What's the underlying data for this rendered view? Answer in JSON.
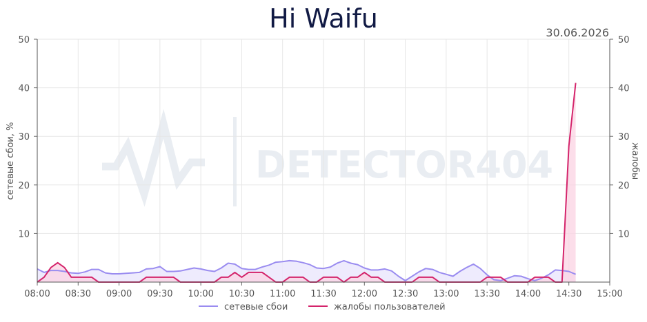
{
  "chart_data": {
    "type": "area",
    "title": "Hi Waifu",
    "date": "30.06.2026",
    "watermark": "DETECTOR404",
    "ylabel_left": "сетевые сбои, %",
    "ylabel_right": "жалобы",
    "x_ticks": [
      "08:00",
      "08:30",
      "09:00",
      "09:30",
      "10:00",
      "10:30",
      "11:00",
      "11:30",
      "12:00",
      "12:30",
      "13:00",
      "13:30",
      "14:00",
      "14:30",
      "15:00"
    ],
    "y_ticks_left": [
      "10",
      "20",
      "30",
      "40",
      "50"
    ],
    "y_ticks_right": [
      "10",
      "20",
      "30",
      "40",
      "50"
    ],
    "ylim_left": [
      0,
      50
    ],
    "ylim_right": [
      0,
      50
    ],
    "x_range_minutes": [
      0,
      420
    ],
    "grid": true,
    "legend_position": "bottom-center",
    "series": [
      {
        "name": "сетевые сбои",
        "axis": "left",
        "color": "#9a8cf0",
        "fill": "#ebe7fd",
        "x": [
          0,
          5,
          10,
          15,
          20,
          25,
          30,
          35,
          40,
          45,
          50,
          55,
          60,
          65,
          70,
          75,
          80,
          85,
          90,
          95,
          100,
          105,
          110,
          115,
          120,
          125,
          130,
          135,
          140,
          145,
          150,
          155,
          160,
          165,
          170,
          175,
          180,
          185,
          190,
          195,
          200,
          205,
          210,
          215,
          220,
          225,
          230,
          235,
          240,
          245,
          250,
          255,
          260,
          265,
          270,
          275,
          280,
          285,
          290,
          295,
          300,
          305,
          310,
          315,
          320,
          325,
          330,
          335,
          340,
          345,
          350,
          355,
          360,
          365,
          370,
          375,
          380,
          385,
          390,
          395
        ],
        "values": [
          2.7,
          2.0,
          2.4,
          2.4,
          2.2,
          1.9,
          1.8,
          2.1,
          2.6,
          2.6,
          1.9,
          1.7,
          1.7,
          1.8,
          1.9,
          2.0,
          2.7,
          2.8,
          3.2,
          2.2,
          2.2,
          2.3,
          2.6,
          2.9,
          2.7,
          2.4,
          2.2,
          2.9,
          3.9,
          3.7,
          2.8,
          2.6,
          2.6,
          3.1,
          3.5,
          4.1,
          4.2,
          4.4,
          4.3,
          4.0,
          3.6,
          2.9,
          2.8,
          3.1,
          3.9,
          4.4,
          3.9,
          3.6,
          2.9,
          2.5,
          2.5,
          2.7,
          2.3,
          1.2,
          0.3,
          1.2,
          2.1,
          2.8,
          2.6,
          2.0,
          1.6,
          1.2,
          2.2,
          3.0,
          3.7,
          2.8,
          1.5,
          0.5,
          0.3,
          0.8,
          1.3,
          1.2,
          0.7,
          0.3,
          0.8,
          1.5,
          2.5,
          2.4,
          2.2,
          1.6
        ]
      },
      {
        "name": "жалобы пользователей",
        "axis": "right",
        "color": "#d4246b",
        "fill": "#fbd3e3",
        "x": [
          0,
          5,
          10,
          15,
          20,
          25,
          30,
          35,
          40,
          45,
          50,
          55,
          60,
          65,
          70,
          75,
          80,
          85,
          90,
          95,
          100,
          105,
          110,
          115,
          120,
          125,
          130,
          135,
          140,
          145,
          150,
          155,
          160,
          165,
          170,
          175,
          180,
          185,
          190,
          195,
          200,
          205,
          210,
          215,
          220,
          225,
          230,
          235,
          240,
          245,
          250,
          255,
          260,
          265,
          270,
          275,
          280,
          285,
          290,
          295,
          300,
          305,
          310,
          315,
          320,
          325,
          330,
          335,
          340,
          345,
          350,
          355,
          360,
          365,
          370,
          375,
          380,
          385,
          390,
          395
        ],
        "values": [
          0,
          1,
          3,
          4,
          3,
          1,
          1,
          1,
          1,
          0,
          0,
          0,
          0,
          0,
          0,
          0,
          1,
          1,
          1,
          1,
          1,
          0,
          0,
          0,
          0,
          0,
          0,
          1,
          1,
          2,
          1,
          2,
          2,
          2,
          1,
          0,
          0,
          1,
          1,
          1,
          0,
          0,
          1,
          1,
          1,
          0,
          1,
          1,
          2,
          1,
          1,
          0,
          0,
          0,
          0,
          0,
          1,
          1,
          1,
          0,
          0,
          0,
          0,
          0,
          0,
          0,
          1,
          1,
          1,
          0,
          0,
          0,
          0,
          1,
          1,
          1,
          0,
          0,
          28,
          41
        ]
      }
    ]
  }
}
